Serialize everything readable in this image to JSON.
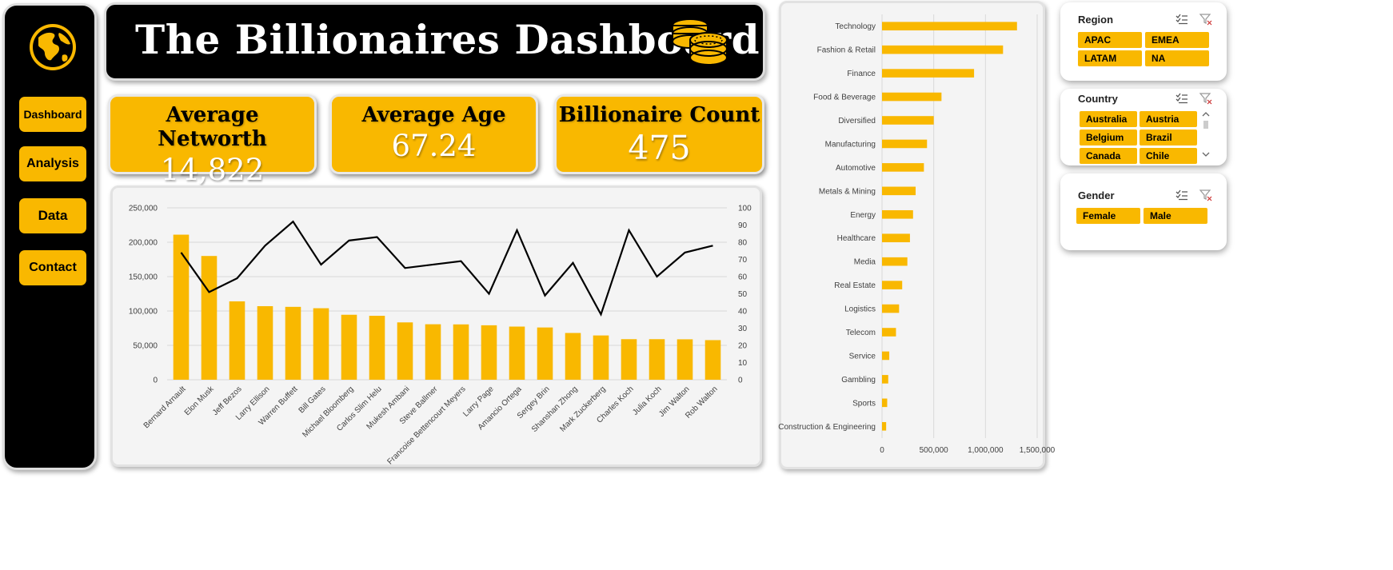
{
  "sidebar": {
    "items": [
      {
        "label": "Dashboard"
      },
      {
        "label": "Analysis"
      },
      {
        "label": "Data"
      },
      {
        "label": "Contact"
      }
    ]
  },
  "header": {
    "title": "The Billionaires Dashboard"
  },
  "kpis": [
    {
      "label": "Average Networth",
      "value": "14,822"
    },
    {
      "label": "Average Age",
      "value": "67.24"
    },
    {
      "label": "Billionaire Count",
      "value": "475"
    }
  ],
  "colors": {
    "accent": "#f9b800",
    "dark": "#000000",
    "line": "#000000"
  },
  "chart_data": [
    {
      "type": "bar",
      "combo_line": true,
      "categories": [
        "Bernard Arnault",
        "Elon Musk",
        "Jeff Bezos",
        "Larry Ellison",
        "Warren Buffett",
        "Bill Gates",
        "Michael Bloomberg",
        "Carlos Slim Helu",
        "Mukesh Ambani",
        "Steve Ballmer",
        "Francoise Bettencourt Meyers",
        "Larry Page",
        "Amancio Ortega",
        "Sergey Brin",
        "Shanshan Zhong",
        "Mark Zuckerberg",
        "Charles Koch",
        "Julia Koch",
        "Jim Walton",
        "Rob Walton"
      ],
      "series": [
        {
          "type": "bar",
          "axis": "left",
          "values": [
            211000,
            180000,
            114000,
            107000,
            106000,
            104000,
            94500,
            93000,
            83400,
            80700,
            80500,
            79200,
            77300,
            76000,
            68000,
            64400,
            59000,
            59000,
            58800,
            57600
          ]
        },
        {
          "type": "line",
          "axis": "right",
          "values": [
            74,
            51,
            59,
            78,
            92,
            67,
            81,
            83,
            65,
            67,
            69,
            50,
            87,
            49,
            68,
            38,
            87,
            60,
            74,
            78
          ]
        }
      ],
      "yticks_left": [
        "0",
        "50,000",
        "100,000",
        "150,000",
        "200,000",
        "250,000"
      ],
      "yticks_right": [
        "0",
        "10",
        "20",
        "30",
        "40",
        "50",
        "60",
        "70",
        "80",
        "90",
        "100"
      ],
      "ylim_left": [
        0,
        250000
      ],
      "ylim_right": [
        0,
        100
      ],
      "grid": true
    },
    {
      "type": "bar",
      "orientation": "horizontal",
      "categories": [
        "Technology",
        "Fashion & Retail",
        "Finance",
        "Food & Beverage",
        "Diversified",
        "Manufacturing",
        "Automotive",
        "Metals & Mining",
        "Energy",
        "Healthcare",
        "Media",
        "Real Estate",
        "Logistics",
        "Telecom",
        "Service",
        "Gambling",
        "Sports",
        "Construction & Engineering"
      ],
      "values": [
        1305000,
        1170000,
        890000,
        575000,
        500000,
        435000,
        405000,
        325000,
        300000,
        270000,
        245000,
        195000,
        165000,
        135000,
        70000,
        60000,
        50000,
        40000
      ],
      "xticks": [
        "0",
        "500,000",
        "1,000,000",
        "1,500,000"
      ],
      "xlim": [
        0,
        1500000
      ],
      "grid": true
    }
  ],
  "slicers": {
    "region": {
      "title": "Region",
      "options": [
        "APAC",
        "EMEA",
        "LATAM",
        "NA"
      ]
    },
    "country": {
      "title": "Country",
      "options": [
        "Australia",
        "Austria",
        "Belgium",
        "Brazil",
        "Canada",
        "Chile"
      ]
    },
    "gender": {
      "title": "Gender",
      "options": [
        "Female",
        "Male"
      ]
    }
  },
  "icons": {
    "logo": "globe-icon",
    "banner": "coins-icon",
    "multiselect": "multiselect-icon",
    "clear_filter": "clear-filter-icon"
  }
}
